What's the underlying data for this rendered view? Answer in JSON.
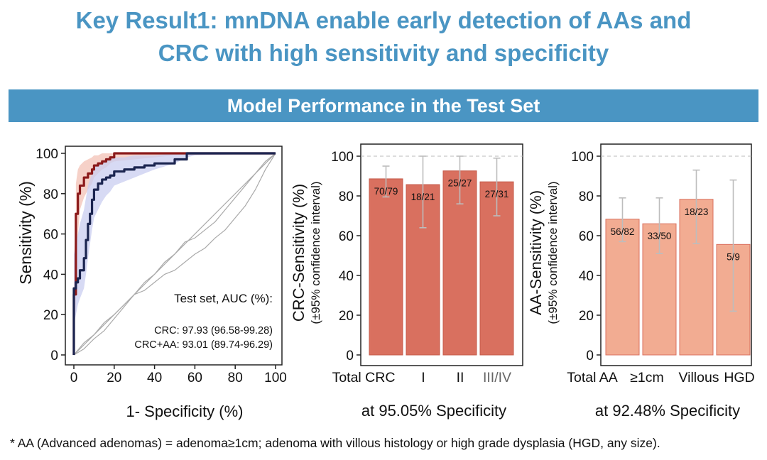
{
  "header": {
    "title_line1": "Key Result1: mnDNA enable early detection of AAs and",
    "title_line2": "CRC with high sensitivity and specificity",
    "banner": "Model Performance in the Test Set"
  },
  "footnote": "* AA (Advanced adenomas) = adenoma≥1cm; adenoma with villous histology or high grade dysplasia (HGD, any size).",
  "colors": {
    "accent": "#4a95c3",
    "crc_line": "#8b1a1a",
    "crcaa_line": "#1b2550",
    "crc_band": "#f3c2b6",
    "crcaa_band": "#c9cdf0",
    "bar_crc": "#d9705f",
    "bar_aa": "#f2ac92"
  },
  "chart_data": [
    {
      "type": "line",
      "title": "",
      "xlabel": "1- Specificity (%)",
      "ylabel": "Sensitivity (%)",
      "xlim": [
        0,
        100
      ],
      "ylim": [
        0,
        100
      ],
      "xticks": [
        "0",
        "20",
        "40",
        "60",
        "80",
        "100"
      ],
      "yticks": [
        "0",
        "20",
        "40",
        "60",
        "80",
        "100"
      ],
      "legend_title": "Test set, AUC (%):",
      "annotations": [
        "CRC: 97.93 (96.58-99.28)",
        "CRC+AA: 93.01 (89.74-96.29)"
      ],
      "series": [
        {
          "name": "CRC",
          "color": "#8b1a1a",
          "x": [
            0,
            0,
            1,
            1,
            2,
            3,
            5,
            7,
            9,
            10,
            12,
            14,
            16,
            18,
            20,
            30,
            50,
            100
          ],
          "y": [
            0,
            30,
            50,
            70,
            80,
            84,
            88,
            90,
            92,
            94,
            95,
            96,
            97,
            98,
            100,
            100,
            100,
            100
          ],
          "lower": [
            0,
            10,
            25,
            45,
            60,
            72,
            78,
            82,
            85,
            88,
            90,
            92,
            93,
            95,
            96,
            97,
            99,
            100
          ],
          "upper": [
            0,
            45,
            70,
            85,
            92,
            94,
            96,
            97,
            98,
            99,
            99,
            100,
            100,
            100,
            100,
            100,
            100,
            100
          ]
        },
        {
          "name": "CRC+AA",
          "color": "#1b2550",
          "x": [
            0,
            0,
            1,
            2,
            3,
            5,
            6,
            7,
            8,
            9,
            10,
            12,
            14,
            16,
            18,
            20,
            25,
            30,
            35,
            40,
            50,
            56,
            60,
            100
          ],
          "y": [
            0,
            33,
            36,
            38,
            42,
            48,
            57,
            65,
            70,
            77,
            82,
            85,
            87,
            88,
            89,
            91,
            92,
            93,
            94,
            95,
            97,
            100,
            100,
            100
          ],
          "lower": [
            0,
            15,
            20,
            25,
            28,
            33,
            40,
            48,
            55,
            62,
            68,
            72,
            76,
            79,
            81,
            84,
            86,
            88,
            90,
            92,
            95,
            98,
            99,
            100
          ],
          "upper": [
            0,
            50,
            55,
            60,
            65,
            72,
            78,
            84,
            87,
            90,
            93,
            95,
            96,
            97,
            97,
            98,
            98,
            99,
            99,
            99,
            100,
            100,
            100,
            100
          ]
        },
        {
          "name": "random-1",
          "color": "#aaaaaa",
          "x": [
            0,
            5,
            10,
            15,
            20,
            25,
            30,
            35,
            40,
            45,
            50,
            55,
            60,
            65,
            70,
            75,
            80,
            85,
            90,
            95,
            100
          ],
          "y": [
            0,
            6,
            10,
            16,
            20,
            25,
            30,
            32,
            36,
            40,
            42,
            46,
            50,
            53,
            58,
            62,
            68,
            74,
            82,
            92,
            100
          ]
        },
        {
          "name": "random-2",
          "color": "#aaaaaa",
          "x": [
            0,
            5,
            10,
            15,
            20,
            25,
            30,
            35,
            40,
            45,
            50,
            55,
            60,
            65,
            70,
            75,
            80,
            85,
            90,
            95,
            100
          ],
          "y": [
            0,
            3,
            8,
            12,
            18,
            24,
            30,
            36,
            40,
            46,
            50,
            56,
            58,
            62,
            66,
            72,
            78,
            84,
            90,
            96,
            100
          ]
        },
        {
          "name": "diagonal",
          "color": "#aaaaaa",
          "x": [
            0,
            100
          ],
          "y": [
            0,
            100
          ]
        }
      ]
    },
    {
      "type": "bar",
      "title": "",
      "xlabel": "at 95.05% Specificity",
      "ylabel": "CRC-Sensitivity (%)",
      "ylabel2": "(±95% confidence interval)",
      "ylim": [
        0,
        100
      ],
      "yticks": [
        "0",
        "20",
        "40",
        "60",
        "80",
        "100"
      ],
      "categories": [
        "Total CRC",
        "I",
        "II",
        "III/IV"
      ],
      "values": [
        88.6,
        85.7,
        92.6,
        87.1
      ],
      "ci_low": [
        79.5,
        64,
        76,
        70
      ],
      "ci_high": [
        95,
        100,
        100,
        99
      ],
      "labels": [
        "70/79",
        "18/21",
        "25/27",
        "27/31"
      ]
    },
    {
      "type": "bar",
      "title": "",
      "xlabel": "at 92.48% Specificity",
      "ylabel": "AA-Sensitivity (%)",
      "ylabel2": "(±95% confidence interval)",
      "ylim": [
        0,
        100
      ],
      "yticks": [
        "0",
        "20",
        "40",
        "60",
        "80",
        "100"
      ],
      "categories": [
        "Total AA",
        "≥1cm",
        "Villous",
        "HGD"
      ],
      "values": [
        68.3,
        66.0,
        78.3,
        55.6
      ],
      "ci_low": [
        57,
        51,
        56,
        22
      ],
      "ci_high": [
        79,
        79,
        93,
        88
      ],
      "labels": [
        "56/82",
        "33/50",
        "18/23",
        "5/9"
      ]
    }
  ]
}
